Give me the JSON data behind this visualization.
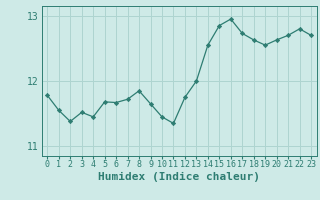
{
  "x": [
    0,
    1,
    2,
    3,
    4,
    5,
    6,
    7,
    8,
    9,
    10,
    11,
    12,
    13,
    14,
    15,
    16,
    17,
    18,
    19,
    20,
    21,
    22,
    23
  ],
  "y": [
    11.78,
    11.55,
    11.38,
    11.52,
    11.45,
    11.68,
    11.67,
    11.72,
    11.85,
    11.65,
    11.45,
    11.35,
    11.75,
    12.0,
    12.55,
    12.85,
    12.95,
    12.73,
    12.63,
    12.55,
    12.63,
    12.7,
    12.8,
    12.7
  ],
  "line_color": "#2e7d72",
  "marker_color": "#2e7d72",
  "bg_color": "#ceeae7",
  "grid_color": "#aed4d0",
  "axis_color": "#2e7d72",
  "xlabel": "Humidex (Indice chaleur)",
  "ylim": [
    10.85,
    13.15
  ],
  "yticks": [
    11,
    12,
    13
  ],
  "font_size": 7,
  "label_font_size": 8
}
